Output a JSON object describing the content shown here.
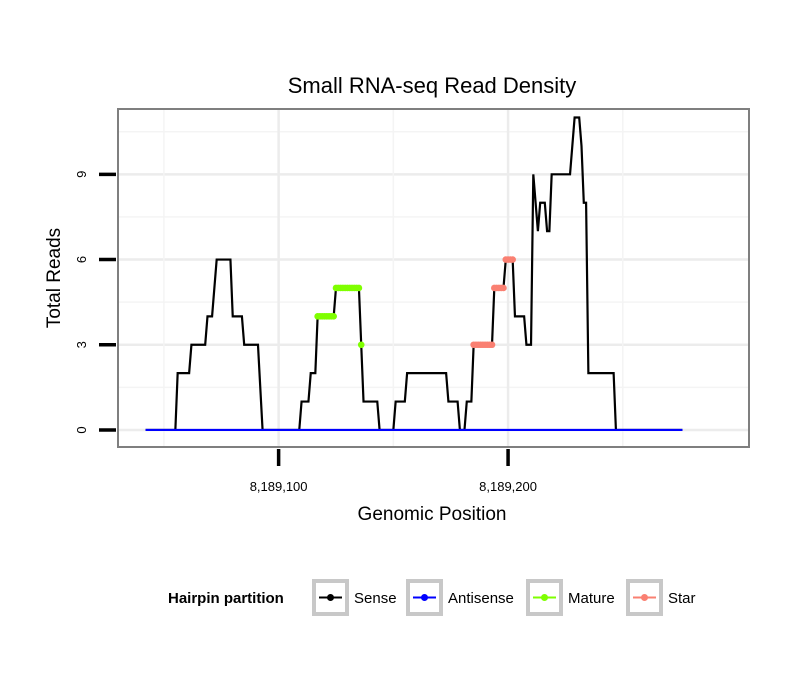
{
  "chart_data": {
    "type": "line",
    "title": "Small RNA-seq Read Density",
    "xlabel": "Genomic Position",
    "ylabel": "Total Reads",
    "xlim": [
      8189030,
      8189305
    ],
    "ylim": [
      -0.6,
      11.3
    ],
    "x_ticks": [
      8189100,
      8189200
    ],
    "x_tick_labels": [
      "8,189,100",
      "8,189,200"
    ],
    "y_ticks": [
      0,
      3,
      6,
      9
    ],
    "y_tick_labels": [
      "0",
      "3",
      "6",
      "9"
    ],
    "grid": true,
    "legend": {
      "title": "Hairpin partition",
      "position": "bottom",
      "entries": [
        {
          "label": "Sense",
          "color": "#000000"
        },
        {
          "label": "Antisense",
          "color": "#0000FF"
        },
        {
          "label": "Mature",
          "color": "#7FFF00"
        },
        {
          "label": "Star",
          "color": "#FA8072"
        }
      ]
    },
    "series": [
      {
        "name": "Sense",
        "color": "#000000",
        "points": [
          [
            8189042,
            0
          ],
          [
            8189055,
            0
          ],
          [
            8189056,
            2
          ],
          [
            8189061,
            2
          ],
          [
            8189062,
            3
          ],
          [
            8189068,
            3
          ],
          [
            8189069,
            4
          ],
          [
            8189071,
            4
          ],
          [
            8189072,
            5
          ],
          [
            8189073,
            6
          ],
          [
            8189079,
            6
          ],
          [
            8189080,
            4
          ],
          [
            8189084,
            4
          ],
          [
            8189085,
            3
          ],
          [
            8189091,
            3
          ],
          [
            8189093,
            0
          ],
          [
            8189097,
            0
          ],
          [
            8189097,
            0
          ],
          [
            8189109,
            0
          ],
          [
            8189110,
            1
          ],
          [
            8189113,
            1
          ],
          [
            8189114,
            2
          ],
          [
            8189116,
            2
          ],
          [
            8189117,
            4
          ],
          [
            8189124,
            4
          ],
          [
            8189125,
            5
          ],
          [
            8189135,
            5
          ],
          [
            8189136,
            3
          ],
          [
            8189137,
            1
          ],
          [
            8189143,
            1
          ],
          [
            8189144,
            0
          ],
          [
            8189150,
            0
          ],
          [
            8189150,
            0
          ],
          [
            8189151,
            1
          ],
          [
            8189155,
            1
          ],
          [
            8189156,
            2
          ],
          [
            8189173,
            2
          ],
          [
            8189174,
            1
          ],
          [
            8189178,
            1
          ],
          [
            8189179,
            0
          ],
          [
            8189181,
            0
          ],
          [
            8189182,
            1
          ],
          [
            8189184,
            1
          ],
          [
            8189185,
            3
          ],
          [
            8189193,
            3
          ],
          [
            8189194,
            5
          ],
          [
            8189198,
            5
          ],
          [
            8189199,
            6
          ],
          [
            8189202,
            6
          ],
          [
            8189203,
            4
          ],
          [
            8189207,
            4
          ],
          [
            8189208,
            3
          ],
          [
            8189210,
            3
          ],
          [
            8189211,
            9
          ],
          [
            8189213,
            7
          ],
          [
            8189214,
            8
          ],
          [
            8189216,
            8
          ],
          [
            8189217,
            7
          ],
          [
            8189218,
            7
          ],
          [
            8189219,
            9
          ],
          [
            8189227,
            9
          ],
          [
            8189228,
            10
          ],
          [
            8189229,
            11
          ],
          [
            8189231,
            11
          ],
          [
            8189232,
            10
          ],
          [
            8189233,
            8
          ],
          [
            8189234,
            8
          ],
          [
            8189235,
            2
          ],
          [
            8189246,
            2
          ],
          [
            8189247,
            0
          ],
          [
            8189276,
            0
          ]
        ]
      },
      {
        "name": "Antisense",
        "color": "#0000FF",
        "points": [
          [
            8189042,
            0
          ],
          [
            8189276,
            0
          ]
        ]
      },
      {
        "name": "Mature",
        "color": "#7FFF00",
        "points": [
          [
            8189117,
            4
          ],
          [
            8189118,
            4
          ],
          [
            8189119,
            4
          ],
          [
            8189120,
            4
          ],
          [
            8189121,
            4
          ],
          [
            8189122,
            4
          ],
          [
            8189123,
            4
          ],
          [
            8189124,
            4
          ],
          [
            8189125,
            5
          ],
          [
            8189126,
            5
          ],
          [
            8189127,
            5
          ],
          [
            8189128,
            5
          ],
          [
            8189129,
            5
          ],
          [
            8189130,
            5
          ],
          [
            8189131,
            5
          ],
          [
            8189132,
            5
          ],
          [
            8189133,
            5
          ],
          [
            8189134,
            5
          ],
          [
            8189135,
            5
          ],
          [
            8189136,
            3
          ]
        ]
      },
      {
        "name": "Star",
        "color": "#FA8072",
        "points": [
          [
            8189185,
            3
          ],
          [
            8189186,
            3
          ],
          [
            8189187,
            3
          ],
          [
            8189188,
            3
          ],
          [
            8189189,
            3
          ],
          [
            8189190,
            3
          ],
          [
            8189191,
            3
          ],
          [
            8189192,
            3
          ],
          [
            8189193,
            3
          ],
          [
            8189194,
            5
          ],
          [
            8189195,
            5
          ],
          [
            8189196,
            5
          ],
          [
            8189197,
            5
          ],
          [
            8189198,
            5
          ],
          [
            8189199,
            6
          ],
          [
            8189200,
            6
          ],
          [
            8189201,
            6
          ],
          [
            8189202,
            6
          ]
        ]
      }
    ]
  }
}
